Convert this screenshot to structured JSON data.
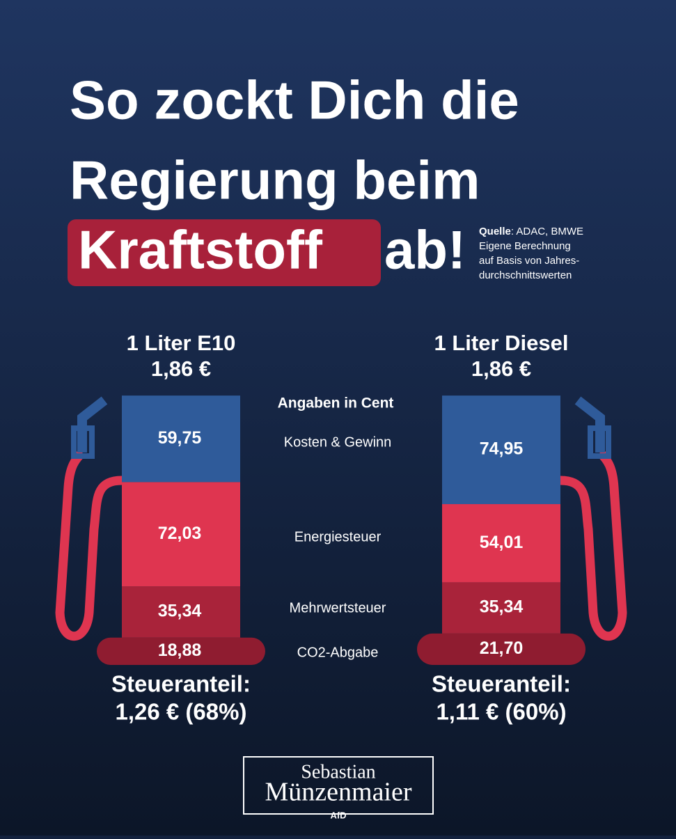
{
  "header": {
    "title_lines": [
      "So zockt Dich die",
      "Regierung beim"
    ],
    "highlight": "Kraftstoff",
    "title_end": "ab!",
    "source": {
      "label": "Quelle",
      "text": ": ADAC, BMWE",
      "lines": [
        "Eigene Berechnung",
        "auf Basis von Jahres-",
        "durchschnittswerten"
      ]
    }
  },
  "unit_note": "Angaben in Cent",
  "chart_data": [
    {
      "type": "bar",
      "stacked": true,
      "title": "1 Liter E10",
      "subtitle": "1,86 €",
      "categories": [
        "Kosten & Gewinn",
        "Energiesteuer",
        "Mehrwertsteuer",
        "CO2-Abgabe"
      ],
      "values": [
        59.75,
        72.03,
        35.34,
        18.88
      ],
      "value_labels": [
        "59,75",
        "72,03",
        "35,34",
        "18,88"
      ],
      "colors": [
        "#2f5b9a",
        "#df3550",
        "#a9233a",
        "#8f1c30"
      ],
      "footer": [
        "Steueranteil:",
        "1,26 € (68%)"
      ]
    },
    {
      "type": "bar",
      "stacked": true,
      "title": "1 Liter Diesel",
      "subtitle": "1,86 €",
      "values": [
        74.95,
        54.01,
        35.34,
        21.7
      ],
      "value_labels": [
        "74,95",
        "54,01",
        "35,34",
        "21,70"
      ],
      "colors": [
        "#2f5b9a",
        "#df3550",
        "#a9233a",
        "#8f1c30"
      ],
      "footer": [
        "Steueranteil:",
        "1,11 € (60%)"
      ]
    }
  ],
  "footer": {
    "name_lines": [
      "Sebastian",
      "Münzenmaier"
    ],
    "party": "AfD"
  }
}
